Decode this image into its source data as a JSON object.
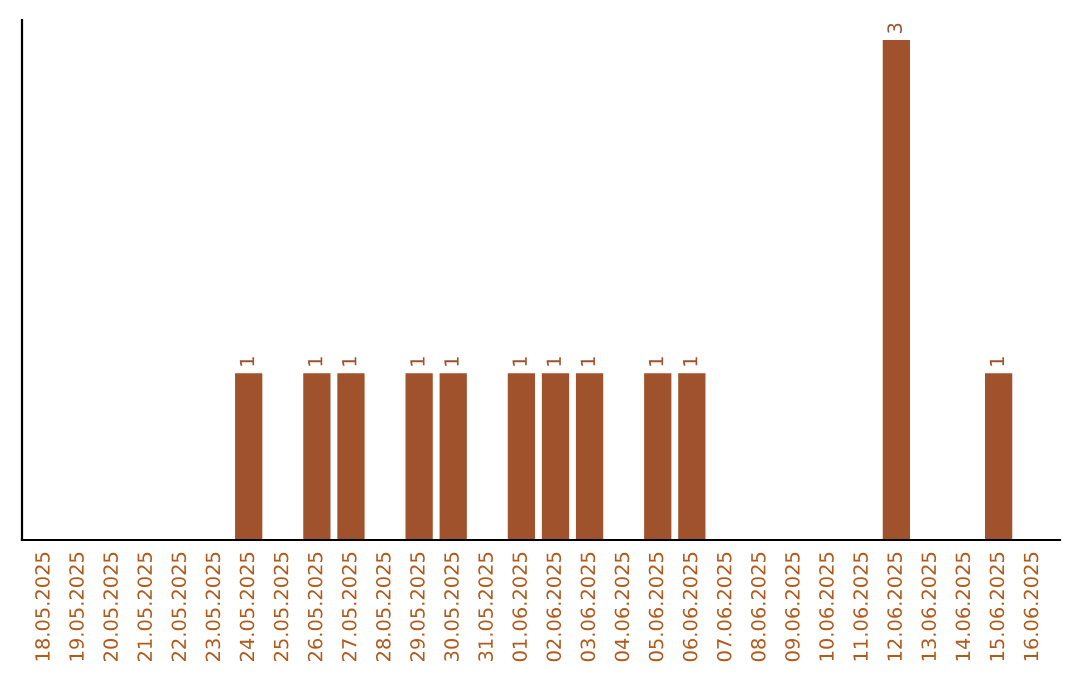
{
  "chart_data": {
    "type": "bar",
    "categories": [
      "18.05.2025",
      "19.05.2025",
      "20.05.2025",
      "21.05.2025",
      "22.05.2025",
      "23.05.2025",
      "24.05.2025",
      "25.05.2025",
      "26.05.2025",
      "27.05.2025",
      "28.05.2025",
      "29.05.2025",
      "30.05.2025",
      "31.05.2025",
      "01.06.2025",
      "02.06.2025",
      "03.06.2025",
      "04.06.2025",
      "05.06.2025",
      "06.06.2025",
      "07.06.2025",
      "08.06.2025",
      "09.06.2025",
      "10.06.2025",
      "11.06.2025",
      "12.06.2025",
      "13.06.2025",
      "14.06.2025",
      "15.06.2025",
      "16.06.2025"
    ],
    "values": [
      0,
      0,
      0,
      0,
      0,
      0,
      1,
      0,
      1,
      1,
      0,
      1,
      1,
      0,
      1,
      1,
      1,
      0,
      1,
      1,
      0,
      0,
      0,
      0,
      0,
      3,
      0,
      0,
      1,
      0
    ],
    "value_labels": [
      null,
      null,
      null,
      null,
      null,
      null,
      "1",
      null,
      "1",
      "1",
      null,
      "1",
      "1",
      null,
      "1",
      "1",
      "1",
      null,
      "1",
      "1",
      null,
      null,
      null,
      null,
      null,
      "3",
      null,
      null,
      "1",
      null
    ],
    "color": "#a0522d",
    "tick_labels": "x",
    "grid": false
  }
}
